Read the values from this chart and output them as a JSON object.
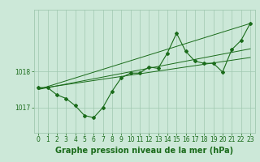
{
  "bg_color": "#cce8d8",
  "line_color": "#1a6b1a",
  "grid_color": "#a0c8b0",
  "xlabel": "Graphe pression niveau de la mer (hPa)",
  "xlabel_fontsize": 7,
  "tick_fontsize": 5.5,
  "ylabel_ticks": [
    1017,
    1018
  ],
  "xlim": [
    -0.5,
    23.5
  ],
  "ylim": [
    1016.3,
    1019.7
  ],
  "main_data": {
    "x": [
      0,
      1,
      2,
      3,
      4,
      5,
      6,
      7,
      8,
      9,
      10,
      11,
      12,
      13,
      14,
      15,
      16,
      17,
      18,
      19,
      20,
      21,
      22,
      23
    ],
    "y": [
      1017.55,
      1017.55,
      1017.35,
      1017.25,
      1017.05,
      1016.78,
      1016.72,
      1017.0,
      1017.45,
      1017.82,
      1017.95,
      1017.95,
      1018.12,
      1018.08,
      1018.5,
      1019.05,
      1018.55,
      1018.28,
      1018.22,
      1018.22,
      1017.98,
      1018.6,
      1018.85,
      1019.32
    ]
  },
  "trend_lines": [
    {
      "x0": 0,
      "y0": 1017.52,
      "x1": 23,
      "y1": 1018.38
    },
    {
      "x0": 0,
      "y0": 1017.5,
      "x1": 23,
      "y1": 1018.62
    },
    {
      "x0": 0,
      "y0": 1017.5,
      "x1": 23,
      "y1": 1019.32
    }
  ],
  "xtick_labels": [
    "0",
    "1",
    "2",
    "3",
    "4",
    "5",
    "6",
    "7",
    "8",
    "9",
    "10",
    "11",
    "12",
    "13",
    "14",
    "15",
    "16",
    "17",
    "18",
    "19",
    "20",
    "21",
    "22",
    "23"
  ]
}
